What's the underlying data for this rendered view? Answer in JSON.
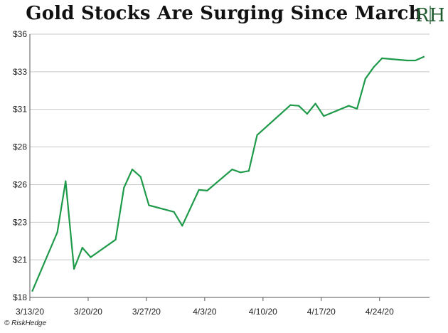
{
  "header": {
    "title": "Gold Stocks Are Surging Since March",
    "logo_text": "RH"
  },
  "footer": {
    "copyright": "© RiskHedge"
  },
  "colors": {
    "line": "#1f9a4a",
    "grid": "#c9c9c9",
    "axis": "#555555",
    "logo": "#1f5a2e"
  },
  "chart_data": {
    "type": "line",
    "title": "Gold Stocks Are Surging Since March",
    "xlabel": "",
    "ylabel": "",
    "grid": true,
    "x_range": [
      "3/13/20",
      "4/30/20"
    ],
    "ylim": [
      18.0,
      36.0
    ],
    "y_ticks": [
      {
        "value": 18.0,
        "label": "$18"
      },
      {
        "value": 20.57,
        "label": "$21"
      },
      {
        "value": 23.14,
        "label": "$23"
      },
      {
        "value": 25.71,
        "label": "$26"
      },
      {
        "value": 28.29,
        "label": "$28"
      },
      {
        "value": 30.86,
        "label": "$31"
      },
      {
        "value": 33.43,
        "label": "$33"
      },
      {
        "value": 36.0,
        "label": "$36"
      }
    ],
    "x_ticks": [
      {
        "day": 0,
        "label": "3/13/20"
      },
      {
        "day": 7,
        "label": "3/20/20"
      },
      {
        "day": 14,
        "label": "3/27/20"
      },
      {
        "day": 21,
        "label": "4/3/20"
      },
      {
        "day": 28,
        "label": "4/10/20"
      },
      {
        "day": 35,
        "label": "4/17/20"
      },
      {
        "day": 42,
        "label": "4/24/20"
      }
    ],
    "series": [
      {
        "points": [
          {
            "x": 0.3,
            "y": 18.45
          },
          {
            "x": 3.3,
            "y": 22.45
          },
          {
            "x": 4.3,
            "y": 25.95
          },
          {
            "x": 5.3,
            "y": 19.95
          },
          {
            "x": 6.3,
            "y": 21.4
          },
          {
            "x": 7.3,
            "y": 20.75
          },
          {
            "x": 10.3,
            "y": 21.95
          },
          {
            "x": 11.3,
            "y": 25.5
          },
          {
            "x": 12.3,
            "y": 26.75
          },
          {
            "x": 13.3,
            "y": 26.25
          },
          {
            "x": 14.3,
            "y": 24.3
          },
          {
            "x": 17.3,
            "y": 23.85
          },
          {
            "x": 18.3,
            "y": 22.9
          },
          {
            "x": 20.3,
            "y": 25.35
          },
          {
            "x": 21.3,
            "y": 25.3
          },
          {
            "x": 24.3,
            "y": 26.75
          },
          {
            "x": 25.3,
            "y": 26.55
          },
          {
            "x": 26.3,
            "y": 26.65
          },
          {
            "x": 27.3,
            "y": 29.1
          },
          {
            "x": 31.3,
            "y": 31.15
          },
          {
            "x": 32.3,
            "y": 31.1
          },
          {
            "x": 33.3,
            "y": 30.55
          },
          {
            "x": 34.3,
            "y": 31.25
          },
          {
            "x": 35.3,
            "y": 30.4
          },
          {
            "x": 38.3,
            "y": 31.1
          },
          {
            "x": 39.3,
            "y": 30.9
          },
          {
            "x": 40.3,
            "y": 32.95
          },
          {
            "x": 41.3,
            "y": 33.75
          },
          {
            "x": 42.3,
            "y": 34.35
          },
          {
            "x": 45.3,
            "y": 34.2
          },
          {
            "x": 46.3,
            "y": 34.2
          },
          {
            "x": 47.3,
            "y": 34.45
          }
        ]
      }
    ]
  }
}
